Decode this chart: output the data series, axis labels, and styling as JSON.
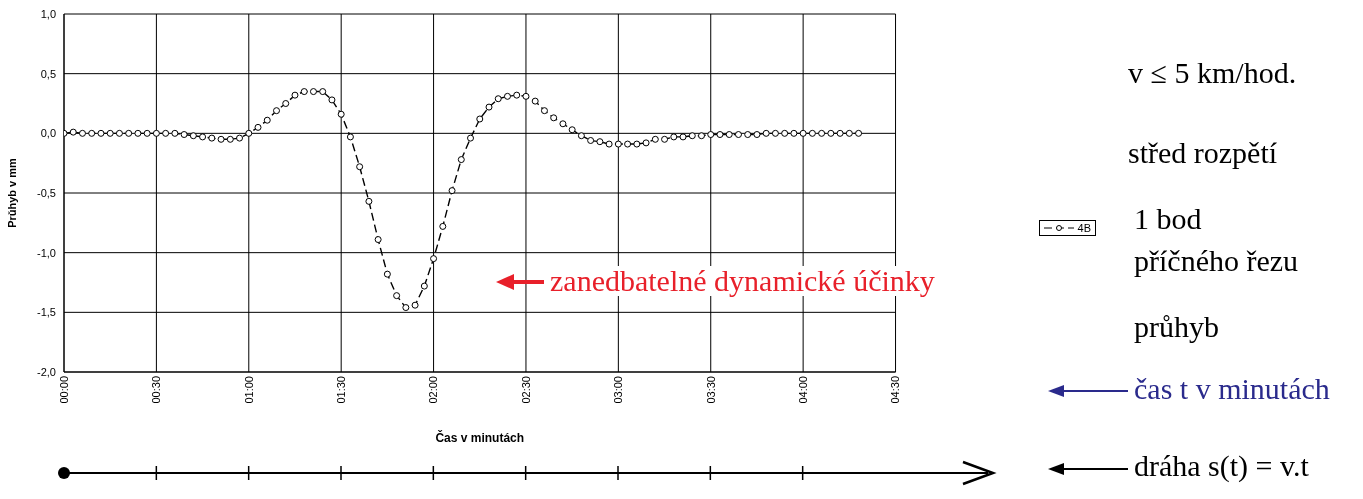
{
  "chart_data": {
    "type": "line",
    "xlabel": "Čas v minutách",
    "ylabel": "Průhyb v mm",
    "x": [
      0,
      0.05,
      0.1,
      0.15,
      0.2,
      0.25,
      0.3,
      0.35,
      0.4,
      0.45,
      0.5,
      0.55,
      0.6,
      0.65,
      0.7,
      0.75,
      0.8,
      0.85,
      0.9,
      0.95,
      1,
      1.05,
      1.1,
      1.15,
      1.2,
      1.25,
      1.3,
      1.35,
      1.4,
      1.45,
      1.5,
      1.55,
      1.6,
      1.65,
      1.7,
      1.75,
      1.8,
      1.85,
      1.9,
      1.95,
      2,
      2.05,
      2.1,
      2.15,
      2.2,
      2.25,
      2.3,
      2.35,
      2.4,
      2.45,
      2.5,
      2.55,
      2.6,
      2.65,
      2.7,
      2.75,
      2.8,
      2.85,
      2.9,
      2.95,
      3,
      3.05,
      3.1,
      3.15,
      3.2,
      3.25,
      3.3,
      3.35,
      3.4,
      3.45,
      3.5,
      3.55,
      3.6,
      3.65,
      3.7,
      3.75,
      3.8,
      3.85,
      3.9,
      3.95,
      4,
      4.05,
      4.1,
      4.15,
      4.2,
      4.25,
      4.3
    ],
    "series": [
      {
        "name": "4B",
        "color": "#000000",
        "values": [
          0,
          0.01,
          0,
          0,
          0,
          0,
          0,
          0,
          0,
          0,
          0,
          0,
          0,
          -0.01,
          -0.02,
          -0.03,
          -0.04,
          -0.05,
          -0.05,
          -0.04,
          0,
          0.05,
          0.11,
          0.19,
          0.25,
          0.32,
          0.35,
          0.35,
          0.35,
          0.28,
          0.16,
          -0.03,
          -0.28,
          -0.57,
          -0.89,
          -1.18,
          -1.36,
          -1.46,
          -1.44,
          -1.28,
          -1.05,
          -0.78,
          -0.48,
          -0.22,
          -0.04,
          0.12,
          0.22,
          0.29,
          0.31,
          0.32,
          0.31,
          0.27,
          0.19,
          0.13,
          0.08,
          0.03,
          -0.02,
          -0.06,
          -0.07,
          -0.09,
          -0.09,
          -0.09,
          -0.09,
          -0.08,
          -0.05,
          -0.05,
          -0.03,
          -0.03,
          -0.02,
          -0.02,
          -0.01,
          -0.01,
          -0.01,
          -0.01,
          -0.01,
          -0.01,
          0,
          0,
          0,
          0,
          0,
          0,
          0,
          0,
          0,
          0,
          0
        ]
      }
    ],
    "xlim": [
      0,
      4.5
    ],
    "xticks": [
      {
        "value": 0,
        "label": "00:00"
      },
      {
        "value": 0.5,
        "label": "00:30"
      },
      {
        "value": 1,
        "label": "01:00"
      },
      {
        "value": 1.5,
        "label": "01:30"
      },
      {
        "value": 2,
        "label": "02:00"
      },
      {
        "value": 2.5,
        "label": "02:30"
      },
      {
        "value": 3,
        "label": "03:00"
      },
      {
        "value": 3.5,
        "label": "03:30"
      },
      {
        "value": 4,
        "label": "04:00"
      },
      {
        "value": 4.5,
        "label": "04:30"
      }
    ],
    "ylim": [
      -2,
      1
    ],
    "yticks": [
      {
        "value": -2,
        "label": "-2,0"
      },
      {
        "value": -1.5,
        "label": "-1,5"
      },
      {
        "value": -1,
        "label": "-1,0"
      },
      {
        "value": -0.5,
        "label": "-0,5"
      },
      {
        "value": 0,
        "label": "0,0"
      },
      {
        "value": 0.5,
        "label": "0,5"
      },
      {
        "value": 1,
        "label": "1,0"
      }
    ],
    "grid": true,
    "legend": "right",
    "marker": "circle",
    "line_style": "dashed",
    "annotations": [
      "zanedbatelné dynamické účinky",
      "v ≤ 5 km/hod.",
      "střed rozpětí",
      "1 bod",
      "příčného řezu",
      "průhyb",
      "čas t v minutách",
      "dráha s(t) = v.t"
    ]
  }
}
